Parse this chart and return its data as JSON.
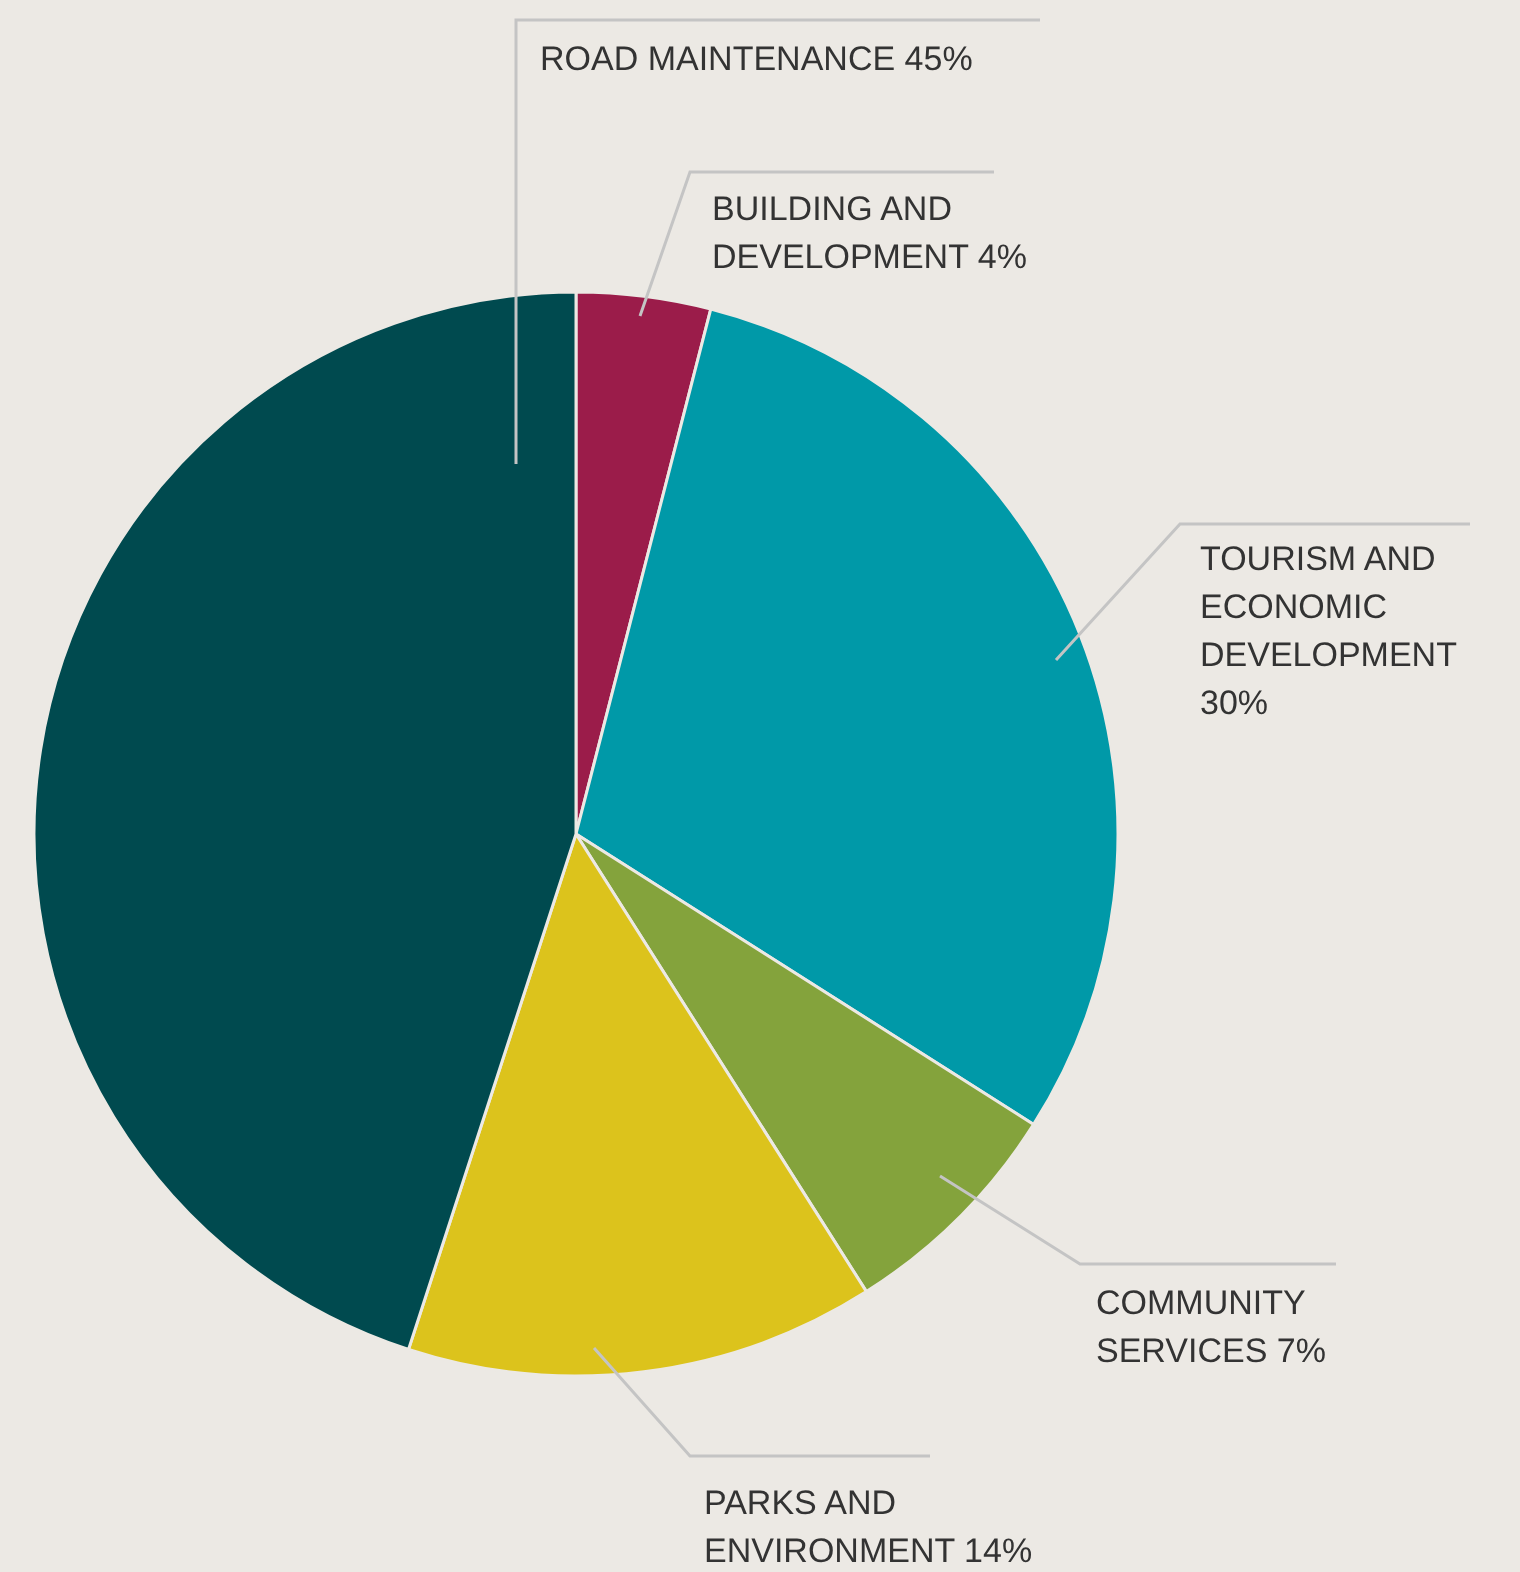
{
  "chart_data": {
    "type": "pie",
    "categories": [
      "BUILDING AND DEVELOPMENT",
      "TOURISM AND ECONOMIC DEVELOPMENT",
      "COMMUNITY SERVICES",
      "PARKS AND ENVIRONMENT",
      "ROAD MAINTENANCE"
    ],
    "values": [
      4,
      30,
      7,
      14,
      45
    ],
    "value_labels": [
      "4%",
      "30%",
      "7%",
      "14%",
      "45%"
    ],
    "colors": [
      "#9b1c4a",
      "#0099a8",
      "#84a33c",
      "#dcc31c",
      "#004a4f"
    ]
  }
}
